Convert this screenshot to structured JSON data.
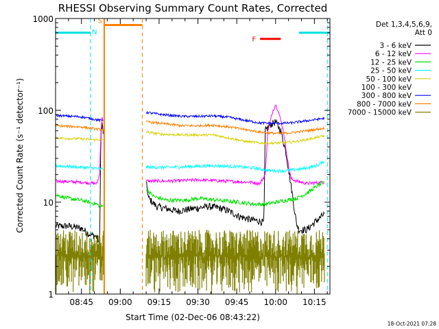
{
  "chart_data": {
    "type": "line",
    "title": "RHESSI Observing Summary Count Rates, Corrected",
    "xlabel": "Start Time (02-Dec-06 08:43:22)",
    "ylabel": "Corrected Count Rate (s⁻¹ detector⁻¹)",
    "yscale": "log",
    "ylim": [
      1,
      1000
    ],
    "xlim": [
      -5,
      101
    ],
    "x_units": "minutes since 08:40 UT",
    "y_ticks": [
      {
        "v": 1,
        "label": "1"
      },
      {
        "v": 10,
        "label": "10"
      },
      {
        "v": 100,
        "label": "100"
      },
      {
        "v": 1000,
        "label": "1000"
      }
    ],
    "x_ticks": [
      {
        "m": 5,
        "label": "08:45"
      },
      {
        "m": 20,
        "label": "09:00"
      },
      {
        "m": 35,
        "label": "09:15"
      },
      {
        "m": 50,
        "label": "09:30"
      },
      {
        "m": 65,
        "label": "09:45"
      },
      {
        "m": 80,
        "label": "10:00"
      },
      {
        "m": 95,
        "label": "10:15"
      }
    ],
    "legend_header": [
      "Det 1,3,4,5,6,9,",
      "Att 0"
    ],
    "footer_date": "18-Oct-2021 07:28",
    "markers": {
      "night": {
        "label": "N",
        "color": "#00e0e0",
        "level": 700,
        "segments": [
          [
            -5,
            8.5
          ],
          [
            89,
            101
          ]
        ],
        "dashes": [
          8.5,
          100
        ]
      },
      "saa": {
        "label": "S",
        "color": "#ff8000",
        "level": 850,
        "segments": [
          [
            13.8,
            28.5
          ]
        ],
        "dashes": [
          13.8,
          28.5
        ]
      },
      "flare": {
        "label": "F",
        "color": "#ff0000",
        "level": 600,
        "segments": [
          [
            74,
            82
          ]
        ]
      }
    },
    "gap": [
      14,
      30
    ],
    "series": [
      {
        "name": "3 - 6 keV",
        "color": "#000000",
        "points": [
          [
            -5,
            5.5
          ],
          [
            0,
            5.5
          ],
          [
            5,
            5.2
          ],
          [
            8,
            4.5
          ],
          [
            11,
            4.2
          ],
          [
            12,
            3.5
          ],
          [
            12.5,
            55
          ],
          [
            13,
            70
          ],
          [
            13.5,
            55
          ],
          [
            30,
            16
          ],
          [
            31,
            11
          ],
          [
            34,
            9
          ],
          [
            38,
            8.5
          ],
          [
            42,
            8
          ],
          [
            48,
            8.5
          ],
          [
            54,
            9
          ],
          [
            58,
            8.7
          ],
          [
            62,
            8
          ],
          [
            66,
            7
          ],
          [
            70,
            6.5
          ],
          [
            74,
            6.2
          ],
          [
            75.5,
            6
          ],
          [
            76,
            60
          ],
          [
            78,
            70
          ],
          [
            80,
            75
          ],
          [
            82,
            60
          ],
          [
            84,
            35
          ],
          [
            86,
            15
          ],
          [
            88,
            6
          ],
          [
            89,
            5
          ],
          [
            92,
            5
          ],
          [
            95,
            6
          ],
          [
            99,
            7.5
          ]
        ],
        "noise": 0.09
      },
      {
        "name": "6 - 12 keV",
        "color": "#ff00ff",
        "points": [
          [
            -5,
            17
          ],
          [
            5,
            16.5
          ],
          [
            10,
            16
          ],
          [
            11,
            16
          ],
          [
            12,
            20
          ],
          [
            12.5,
            60
          ],
          [
            13,
            82
          ],
          [
            13.5,
            80
          ],
          [
            30,
            17
          ],
          [
            40,
            17
          ],
          [
            50,
            17.5
          ],
          [
            60,
            17
          ],
          [
            70,
            16.5
          ],
          [
            74,
            16
          ],
          [
            76,
            20
          ],
          [
            77,
            60
          ],
          [
            79,
            100
          ],
          [
            80,
            115
          ],
          [
            81,
            100
          ],
          [
            83,
            60
          ],
          [
            85,
            25
          ],
          [
            86,
            18
          ],
          [
            88,
            17
          ],
          [
            92,
            16
          ],
          [
            99,
            16.5
          ]
        ],
        "noise": 0.04
      },
      {
        "name": "12 - 25 keV",
        "color": "#00e000",
        "points": [
          [
            -5,
            12
          ],
          [
            0,
            11
          ],
          [
            5,
            10.5
          ],
          [
            8,
            10
          ],
          [
            11,
            9.5
          ],
          [
            12,
            9
          ],
          [
            13,
            9
          ],
          [
            30,
            14
          ],
          [
            33,
            11.5
          ],
          [
            38,
            10.5
          ],
          [
            45,
            10.5
          ],
          [
            50,
            11
          ],
          [
            58,
            10.5
          ],
          [
            66,
            10
          ],
          [
            72,
            9.5
          ],
          [
            76,
            9.5
          ],
          [
            80,
            10
          ],
          [
            84,
            10.5
          ],
          [
            88,
            11
          ],
          [
            92,
            12.5
          ],
          [
            96,
            15
          ],
          [
            99,
            16.5
          ]
        ],
        "noise": 0.05
      },
      {
        "name": "25 - 50 keV",
        "color": "#00ffff",
        "points": [
          [
            -5,
            25
          ],
          [
            5,
            24
          ],
          [
            10,
            23.5
          ],
          [
            12,
            23
          ],
          [
            13,
            23
          ],
          [
            30,
            24
          ],
          [
            40,
            24
          ],
          [
            48,
            24.5
          ],
          [
            56,
            25
          ],
          [
            64,
            24.5
          ],
          [
            72,
            23.5
          ],
          [
            78,
            22
          ],
          [
            84,
            22
          ],
          [
            90,
            23
          ],
          [
            96,
            25
          ],
          [
            99,
            28
          ]
        ],
        "noise": 0.04
      },
      {
        "name": "50 - 100 keV",
        "color": "#d8d000",
        "points": [
          [
            -5,
            50
          ],
          [
            5,
            49
          ],
          [
            10,
            48
          ],
          [
            12,
            48
          ],
          [
            13,
            48
          ],
          [
            30,
            58
          ],
          [
            36,
            55
          ],
          [
            44,
            54
          ],
          [
            50,
            54
          ],
          [
            56,
            54
          ],
          [
            62,
            50
          ],
          [
            68,
            46
          ],
          [
            74,
            44
          ],
          [
            80,
            44
          ],
          [
            86,
            45
          ],
          [
            92,
            48
          ],
          [
            99,
            53
          ]
        ],
        "noise": 0.03
      },
      {
        "name": "100 - 300 keV",
        "color": "#ffffff",
        "points": [
          [
            -5,
            100
          ],
          [
            99,
            100
          ]
        ],
        "noise": 0,
        "hidden": true
      },
      {
        "name": "300 - 800 keV",
        "color": "#0000ff",
        "points": [
          [
            -5,
            88
          ],
          [
            5,
            85
          ],
          [
            10,
            80
          ],
          [
            12,
            78
          ],
          [
            13,
            78
          ],
          [
            30,
            95
          ],
          [
            36,
            90
          ],
          [
            44,
            86
          ],
          [
            50,
            86
          ],
          [
            56,
            87
          ],
          [
            62,
            84
          ],
          [
            68,
            78
          ],
          [
            74,
            73
          ],
          [
            80,
            72
          ],
          [
            86,
            73
          ],
          [
            92,
            77
          ],
          [
            99,
            82
          ]
        ],
        "noise": 0.03
      },
      {
        "name": "800 - 7000 keV",
        "color": "#ff8000",
        "points": [
          [
            -5,
            68
          ],
          [
            5,
            66
          ],
          [
            10,
            63
          ],
          [
            12,
            62
          ],
          [
            13,
            62
          ],
          [
            30,
            75
          ],
          [
            36,
            72
          ],
          [
            44,
            68
          ],
          [
            50,
            68
          ],
          [
            56,
            69
          ],
          [
            62,
            66
          ],
          [
            68,
            62
          ],
          [
            74,
            58
          ],
          [
            80,
            56
          ],
          [
            86,
            57
          ],
          [
            92,
            60
          ],
          [
            99,
            64
          ]
        ],
        "noise": 0.03
      },
      {
        "name": "7000 - 15000 keV",
        "color": "#808000",
        "style": "band",
        "points": [
          [
            -5,
            3
          ],
          [
            12.5,
            3
          ],
          [
            30,
            3
          ],
          [
            70,
            3
          ],
          [
            98,
            3
          ]
        ],
        "noise": 0
      }
    ]
  }
}
